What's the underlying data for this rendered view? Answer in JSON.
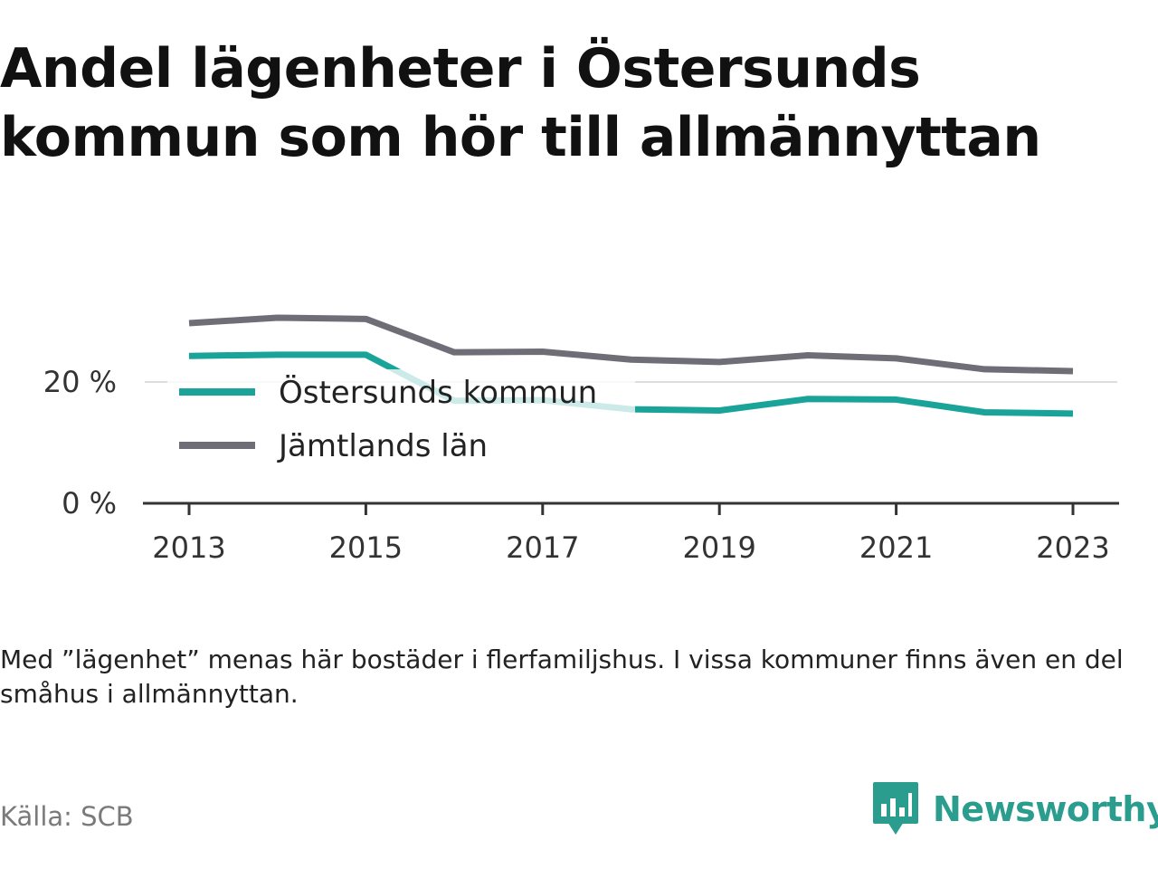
{
  "title": "Andel lägenheter i Östersunds kommun som hör till allmännyttan",
  "note": "Med ”lägenhet” menas här bostäder i flerfamiljshus. I vissa kommuner finns även en del småhus i allmännyttan.",
  "source": "Källa: SCB",
  "brand": {
    "name": "Newsworthy",
    "icon": "newsworthy-logo-icon",
    "color": "#2a9d8f"
  },
  "chart_data": {
    "type": "line",
    "title": "Andel lägenheter i Östersunds kommun som hör till allmännyttan",
    "x": [
      2013,
      2014,
      2015,
      2016,
      2017,
      2018,
      2019,
      2020,
      2021,
      2022,
      2023
    ],
    "series": [
      {
        "name": "Östersunds kommun",
        "color": "#1aa398",
        "values": [
          24.3,
          24.5,
          24.5,
          16.9,
          17.0,
          15.5,
          15.3,
          17.2,
          17.1,
          15.0,
          14.8
        ]
      },
      {
        "name": "Jämtlands län",
        "color": "#6f6e77",
        "values": [
          29.7,
          30.6,
          30.4,
          24.9,
          25.0,
          23.7,
          23.3,
          24.4,
          23.9,
          22.1,
          21.8
        ]
      }
    ],
    "xticks": [
      "2013",
      "2015",
      "2017",
      "2019",
      "2021",
      "2023"
    ],
    "yticks": [
      "0 %",
      "20 %"
    ],
    "ytick_values": [
      0,
      20
    ],
    "ylim": [
      0,
      32
    ],
    "xlabel": "",
    "ylabel": "",
    "grid": true,
    "legend": "inside-left"
  }
}
